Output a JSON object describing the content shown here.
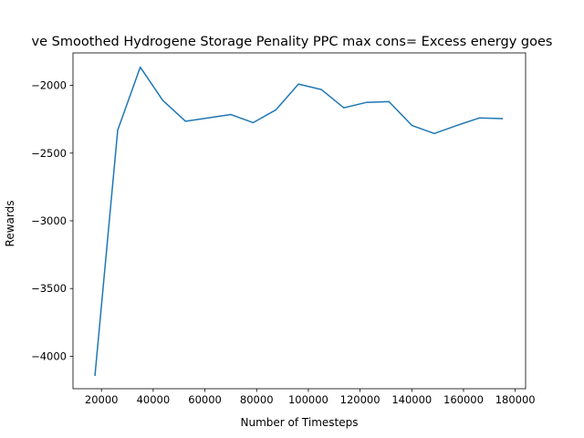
{
  "chart_data": {
    "type": "line",
    "title": "ve Smoothed Hydrogene Storage Penality  PPC max cons= Excess energy goes",
    "xlabel": "Number of Timesteps",
    "ylabel": "Rewards",
    "xlim": [
      9000,
      184000
    ],
    "ylim": [
      -4240,
      -1760
    ],
    "xticks": [
      20000,
      40000,
      60000,
      80000,
      100000,
      120000,
      140000,
      160000,
      180000
    ],
    "xtick_labels": [
      "20000",
      "40000",
      "60000",
      "80000",
      "100000",
      "120000",
      "140000",
      "160000",
      "180000"
    ],
    "yticks": [
      -4000,
      -3500,
      -3000,
      -2500,
      -2000
    ],
    "ytick_labels": [
      "−4000",
      "−3500",
      "−3000",
      "−2500",
      "−2000"
    ],
    "grid": false,
    "series": [
      {
        "color": "#1f77b4",
        "x": [
          17500,
          26300,
          35000,
          43700,
          52500,
          61200,
          70000,
          78700,
          87500,
          96200,
          105000,
          113700,
          122500,
          131200,
          140000,
          148700,
          157500,
          166200,
          175000
        ],
        "y": [
          -4140,
          -2330,
          -1865,
          -2110,
          -2265,
          -2240,
          -2215,
          -2275,
          -2180,
          -1990,
          -2030,
          -2165,
          -2125,
          -2120,
          -2295,
          -2355,
          -2295,
          -2240,
          -2245
        ]
      }
    ]
  }
}
